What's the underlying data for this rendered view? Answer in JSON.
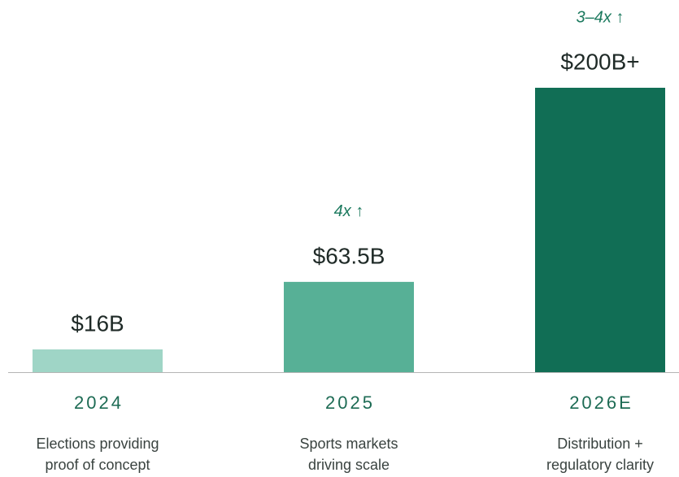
{
  "chart_data": {
    "type": "bar",
    "categories": [
      "2024",
      "2025",
      "2026E"
    ],
    "values": [
      16,
      63.5,
      200
    ],
    "value_labels": [
      "$16B",
      "$63.5B",
      "$200B+"
    ],
    "growth": [
      null,
      "4x ↑",
      "3–4x ↑"
    ],
    "descriptions": [
      [
        "Elections providing",
        "proof of concept"
      ],
      [
        "Sports markets",
        "driving scale"
      ],
      [
        "Distribution +",
        "regulatory clarity"
      ]
    ],
    "colors": [
      "#9fd5c6",
      "#57b096",
      "#116e55"
    ]
  }
}
